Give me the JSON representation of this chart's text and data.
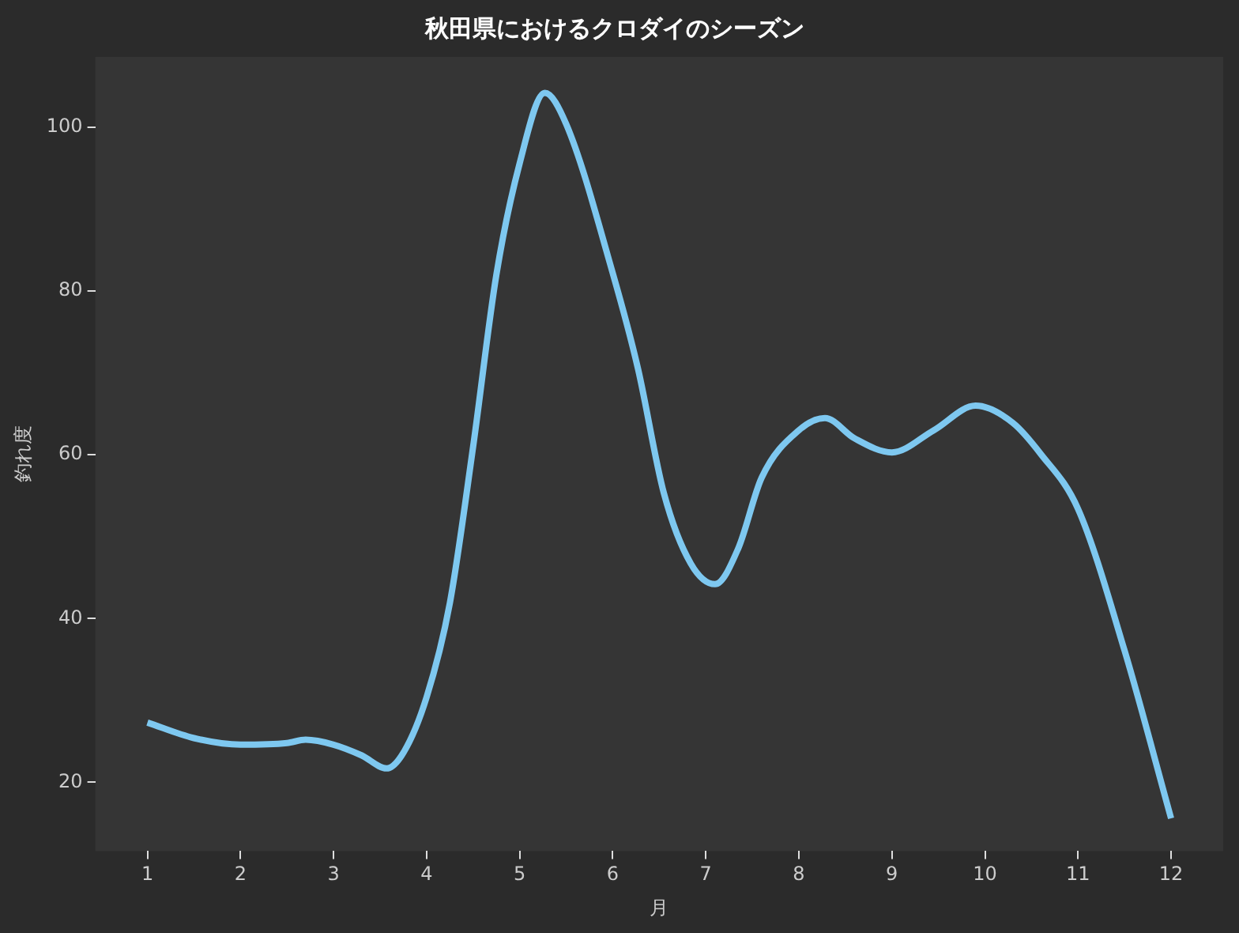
{
  "chart_data": {
    "type": "line",
    "title": "秋田県におけるクロダイのシーズン",
    "xlabel": "月",
    "ylabel": "釣れ度",
    "x": [
      1,
      1.5,
      2,
      2.5,
      2.7,
      3,
      3.3,
      3.57,
      3.75,
      4,
      4.25,
      4.5,
      4.75,
      5,
      5.27,
      5.5,
      6,
      6.27,
      6.55,
      6.84,
      7.1,
      7.35,
      7.6,
      8,
      8.28,
      8.6,
      9,
      9.45,
      9.9,
      10.3,
      10.6,
      11,
      11.5,
      12
    ],
    "series": [
      {
        "color": "#7ec8f0",
        "values": [
          27.3,
          25.4,
          24.6,
          24.8,
          25.2,
          24.6,
          23.3,
          21.7,
          23.6,
          30.4,
          41.9,
          61,
          82,
          95.6,
          104.2,
          100.4,
          82.2,
          70.6,
          55.3,
          46.7,
          44.2,
          48.6,
          57.2,
          63,
          64.5,
          62,
          60.3,
          63,
          66,
          63.9,
          60.1,
          53.4,
          36.1,
          15.6
        ]
      }
    ],
    "xlim": [
      0.44,
      12.56
    ],
    "xticks": [
      1,
      2,
      3,
      4,
      5,
      6,
      7,
      8,
      9,
      10,
      11,
      12
    ],
    "ylim": [
      11.6,
      108.6
    ],
    "yticks": [
      20,
      40,
      60,
      80,
      100
    ],
    "grid": false,
    "legend": false,
    "marker": "none",
    "line_style": "solid"
  }
}
